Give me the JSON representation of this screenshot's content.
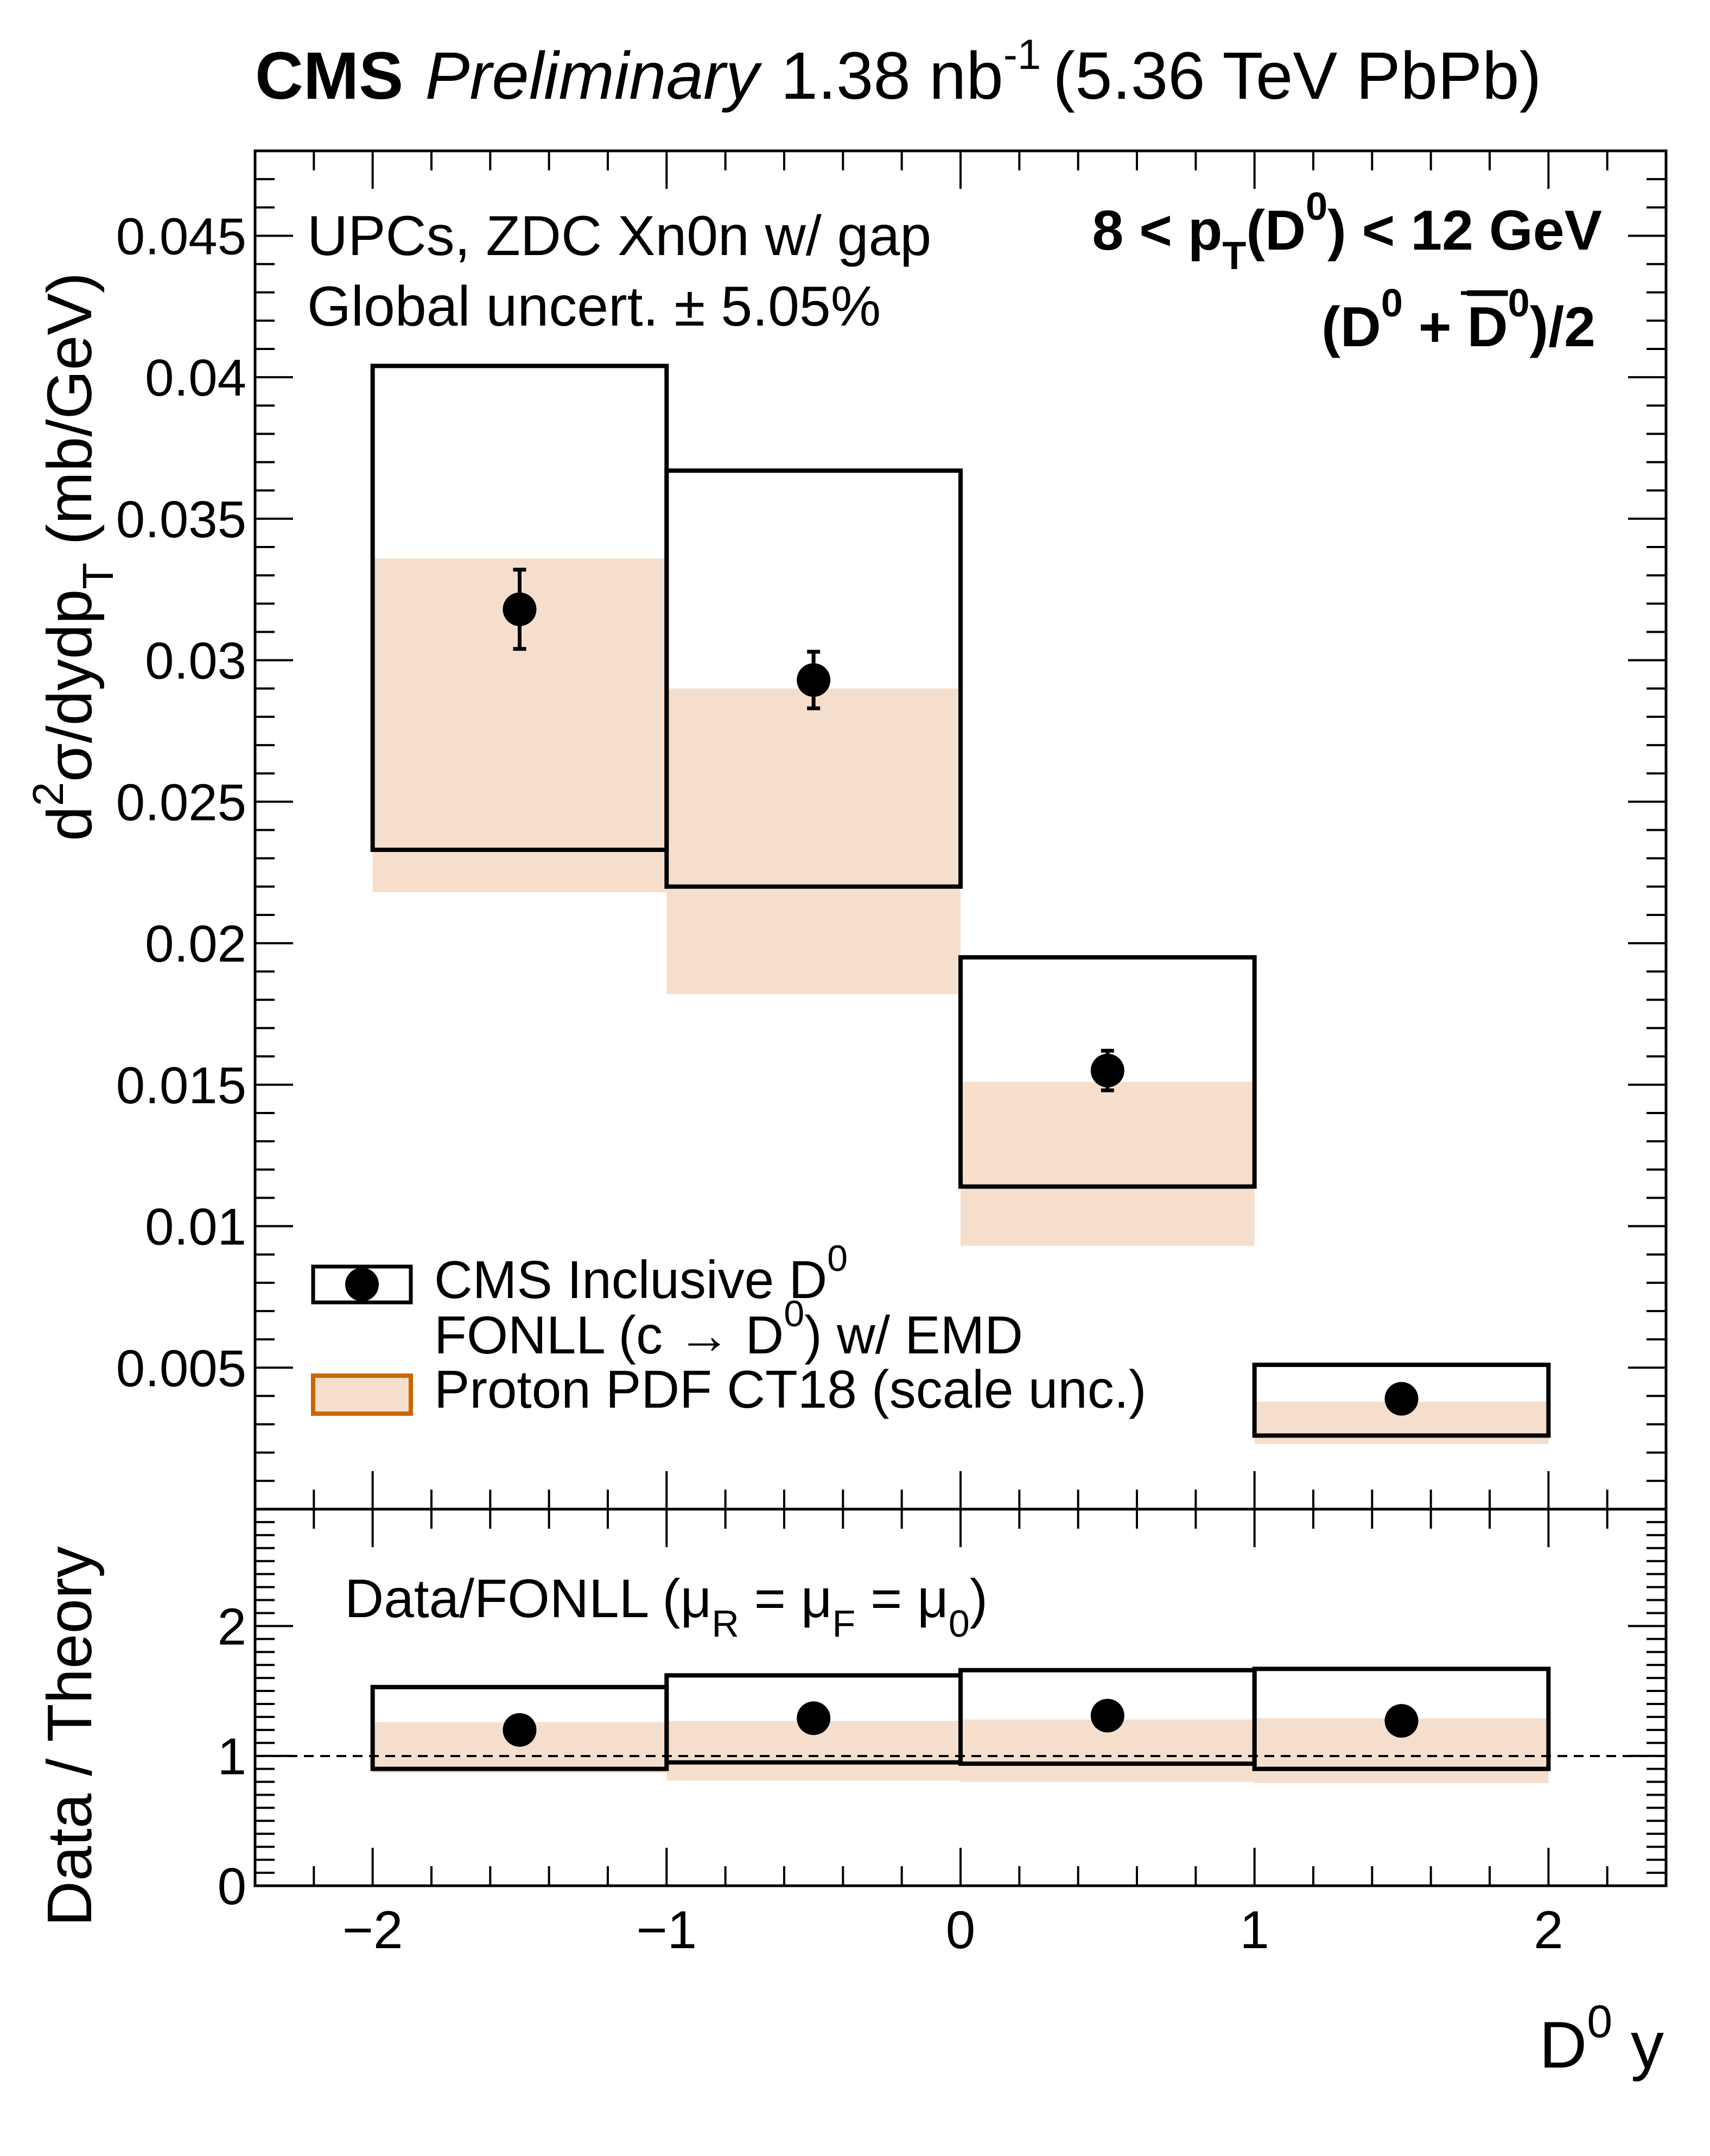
{
  "header": {
    "experiment": "CMS",
    "status": "Preliminary",
    "lumi": "1.38 nb",
    "lumi_exp": "-1",
    "energy": "(5.36 TeV PbPb)"
  },
  "annotations": {
    "selection": "UPCs, ZDC Xn0n w/ gap",
    "global_unc": "Global uncert. ± 5.05%",
    "pt_a": "8 < p",
    "pt_sub": "T",
    "pt_b": "(D",
    "pt_sup": "0",
    "pt_c": ") < 12 GeV",
    "avg_a": "(D",
    "avg_sup1": "0",
    "avg_b": " + ",
    "avg_bar": "D",
    "avg_sup2": "0",
    "avg_c": ")/2",
    "ratio_label": "Data/FONLL (μ",
    "ratio_sub1": "R",
    "ratio_mid1": " = μ",
    "ratio_sub2": "F",
    "ratio_mid2": " = μ",
    "ratio_sub3": "0",
    "ratio_end": ")"
  },
  "legend": {
    "item1": "CMS Inclusive D",
    "item1_sup": "0",
    "item2": "FONLL (c → D",
    "item2_sup": "0",
    "item2_end": ") w/ EMD",
    "item3": "Proton PDF CT18 (scale unc.)"
  },
  "axes": {
    "top_ylabel_a": "d",
    "top_ylabel_sup": "2",
    "top_ylabel_b": "σ/dydp",
    "top_ylabel_sub": "T",
    "top_ylabel_c": " (mb/GeV)",
    "bottom_ylabel": "Data / Theory",
    "xlabel_a": "D",
    "xlabel_sup": "0",
    "xlabel_b": " y"
  },
  "colors": {
    "band": "#f5dfcc",
    "band_legend_border": "#cc6600",
    "ink": "#000000"
  },
  "chart_data": [
    {
      "panel": "top",
      "type": "scatter",
      "x_bins": [
        [
          -2,
          -1
        ],
        [
          -1,
          0
        ],
        [
          0,
          1
        ],
        [
          1,
          2
        ]
      ],
      "x_centers": [
        -1.5,
        -0.5,
        0.5,
        1.5
      ],
      "xlim": [
        -2.4,
        2.4
      ],
      "ylim": [
        0,
        0.048
      ],
      "yticks": [
        0.005,
        0.01,
        0.015,
        0.02,
        0.025,
        0.03,
        0.035,
        0.04,
        0.045
      ],
      "ytick_labels": [
        "0.005",
        "0.01",
        "0.015",
        "0.02",
        "0.025",
        "0.03",
        "0.035",
        "0.04",
        "0.045"
      ],
      "series": [
        {
          "name": "CMS Inclusive D0",
          "values": [
            0.0318,
            0.0293,
            0.0155,
            0.0039
          ],
          "stat_err": [
            0.0014,
            0.001,
            0.0007,
            0.0002
          ]
        },
        {
          "name": "FONLL (c → D0) w/ EMD",
          "kind": "box",
          "low": [
            0.0233,
            0.022,
            0.0114,
            0.0026
          ],
          "high": [
            0.0404,
            0.0367,
            0.0195,
            0.0051
          ]
        },
        {
          "name": "Proton PDF CT18 (scale unc.)",
          "kind": "band",
          "low": [
            0.0218,
            0.0182,
            0.0093,
            0.0023
          ],
          "high": [
            0.0336,
            0.029,
            0.0151,
            0.0038
          ]
        }
      ]
    },
    {
      "panel": "ratio",
      "type": "scatter",
      "x_bins": [
        [
          -2,
          -1
        ],
        [
          -1,
          0
        ],
        [
          0,
          1
        ],
        [
          1,
          2
        ]
      ],
      "x_centers": [
        -1.5,
        -0.5,
        0.5,
        1.5
      ],
      "xlim": [
        -2.4,
        2.4
      ],
      "ylim": [
        0,
        2.9
      ],
      "yticks": [
        0,
        1,
        2
      ],
      "ytick_labels": [
        "0",
        "1",
        "2"
      ],
      "xticks": [
        -2,
        -1,
        0,
        1,
        2
      ],
      "xtick_labels": [
        "−2",
        "−1",
        "0",
        "1",
        "2"
      ],
      "reference_line": 1,
      "series": [
        {
          "name": "Data/FONLL",
          "values": [
            1.2,
            1.29,
            1.31,
            1.27
          ]
        },
        {
          "name": "FONLL box",
          "kind": "box",
          "low": [
            0.9,
            0.95,
            0.94,
            0.9
          ],
          "high": [
            1.53,
            1.62,
            1.66,
            1.67
          ]
        },
        {
          "name": "CT18 band",
          "kind": "band",
          "low": [
            0.87,
            0.81,
            0.8,
            0.79
          ],
          "high": [
            1.26,
            1.27,
            1.28,
            1.29
          ]
        }
      ]
    }
  ]
}
